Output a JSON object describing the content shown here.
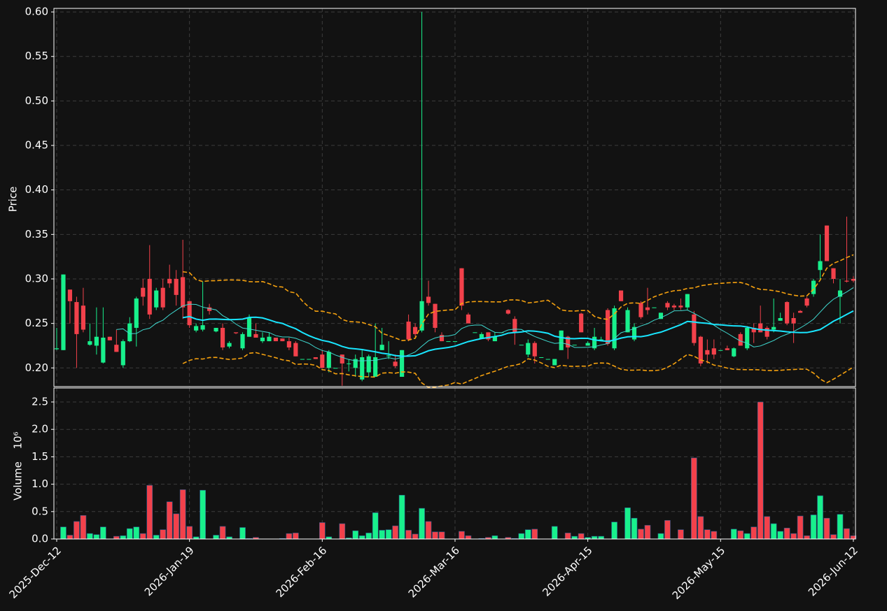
{
  "chart_data": {
    "type": "candlestick",
    "ylabel": "Price",
    "volume_label": "Volume",
    "volume_unit": "10⁶",
    "up_color": "#18f08c",
    "down_color": "#f2414b",
    "grid": true,
    "xlim": [
      -0.42,
      120.32
    ],
    "xticks": [
      {
        "value": 0,
        "label": "2025-Dec-12"
      },
      {
        "value": 20,
        "label": "2026-Jan-19"
      },
      {
        "value": 40,
        "label": "2026-Feb-16"
      },
      {
        "value": 60,
        "label": "2026-Mar-16"
      },
      {
        "value": 80,
        "label": "2026-Apr-15"
      },
      {
        "value": 100,
        "label": "2026-May-15"
      },
      {
        "value": 120,
        "label": "2026-Jun-12"
      }
    ],
    "ylim": [
      0.179,
      0.604
    ],
    "yticks": [
      {
        "value": 0.2,
        "label": "0.20"
      },
      0.25,
      {
        "value": 0.3,
        "label": "0.30"
      },
      0.35,
      {
        "value": 0.4,
        "label": "0.40"
      },
      0.45,
      {
        "value": 0.5,
        "label": "0.50"
      },
      0.55,
      {
        "value": 0.6,
        "label": "0.60"
      }
    ],
    "volume_ylim": [
      0,
      2.755
    ],
    "volume_yticks": [
      {
        "value": 0,
        "label": "0.0"
      },
      0.5,
      {
        "value": 1,
        "label": "1.0"
      },
      1.5,
      {
        "value": 2,
        "label": "2.0"
      },
      2.5
    ],
    "moving_averages": [
      {
        "period": 10,
        "color": "#3fd9d0",
        "width": 1
      },
      {
        "period": 20,
        "color": "#19e6ff",
        "width": 2
      }
    ],
    "bollinger": {
      "period": 20,
      "std": 2,
      "color": "#f5a10f"
    },
    "open": [
      0.221,
      0.22,
      0.288,
      0.274,
      0.27,
      0.226,
      0.225,
      0.206,
      0.235,
      0.226,
      0.203,
      0.23,
      0.245,
      0.29,
      0.3,
      0.268,
      0.29,
      0.3,
      0.3,
      0.302,
      0.275,
      0.242,
      0.243,
      0.268,
      0.241,
      0.245,
      0.224,
      0.24,
      0.222,
      0.235,
      0.238,
      0.23,
      0.23,
      0.234,
      0.233,
      0.23,
      0.228,
      0.21,
      0.21,
      0.212,
      0.215,
      0.2,
      0.2,
      0.215,
      0.205,
      0.2,
      0.187,
      0.195,
      0.19,
      0.22,
      0.213,
      0.207,
      0.19,
      0.252,
      0.246,
      0.242,
      0.28,
      0.272,
      0.237,
      0.23,
      0.23,
      0.312,
      0.26,
      0.24,
      0.233,
      0.24,
      0.23,
      0.24,
      0.265,
      0.255,
      0.226,
      0.215,
      0.228,
      0.212,
      0.21,
      0.203,
      0.22,
      0.235,
      0.226,
      0.261,
      0.225,
      0.222,
      0.23,
      0.265,
      0.222,
      0.287,
      0.24,
      0.232,
      0.273,
      0.268,
      0.268,
      0.255,
      0.273,
      0.27,
      0.27,
      0.268,
      0.26,
      0.235,
      0.22,
      0.222,
      0.22,
      0.222,
      0.213,
      0.238,
      0.222,
      0.245,
      0.25,
      0.245,
      0.243,
      0.253,
      0.274,
      0.256,
      0.264,
      0.278,
      0.283,
      0.31,
      0.36,
      0.312,
      0.28,
      0.298,
      0.3
    ],
    "high": [
      0.245,
      0.305,
      0.288,
      0.28,
      0.29,
      0.25,
      0.268,
      0.268,
      0.235,
      0.243,
      0.232,
      0.257,
      0.28,
      0.3,
      0.338,
      0.29,
      0.3,
      0.316,
      0.31,
      0.344,
      0.275,
      0.25,
      0.297,
      0.272,
      0.245,
      0.25,
      0.23,
      0.24,
      0.24,
      0.26,
      0.25,
      0.24,
      0.24,
      0.234,
      0.233,
      0.234,
      0.23,
      0.21,
      0.21,
      0.212,
      0.22,
      0.22,
      0.2,
      0.215,
      0.21,
      0.215,
      0.22,
      0.215,
      0.25,
      0.245,
      0.23,
      0.215,
      0.22,
      0.26,
      0.25,
      0.6,
      0.298,
      0.272,
      0.24,
      0.23,
      0.23,
      0.312,
      0.262,
      0.24,
      0.24,
      0.24,
      0.24,
      0.24,
      0.266,
      0.258,
      0.226,
      0.232,
      0.23,
      0.212,
      0.21,
      0.21,
      0.242,
      0.236,
      0.226,
      0.262,
      0.23,
      0.245,
      0.235,
      0.267,
      0.27,
      0.287,
      0.268,
      0.25,
      0.275,
      0.29,
      0.268,
      0.262,
      0.275,
      0.272,
      0.278,
      0.283,
      0.264,
      0.236,
      0.232,
      0.232,
      0.22,
      0.225,
      0.223,
      0.24,
      0.247,
      0.25,
      0.27,
      0.247,
      0.278,
      0.262,
      0.275,
      0.262,
      0.265,
      0.28,
      0.3,
      0.35,
      0.36,
      0.312,
      0.3,
      0.37,
      0.303
    ],
    "low": [
      0.22,
      0.22,
      0.25,
      0.2,
      0.24,
      0.225,
      0.215,
      0.205,
      0.231,
      0.218,
      0.2,
      0.229,
      0.224,
      0.27,
      0.255,
      0.265,
      0.265,
      0.29,
      0.27,
      0.255,
      0.245,
      0.24,
      0.241,
      0.26,
      0.24,
      0.22,
      0.222,
      0.238,
      0.22,
      0.235,
      0.234,
      0.228,
      0.23,
      0.23,
      0.23,
      0.22,
      0.213,
      0.21,
      0.21,
      0.21,
      0.2,
      0.195,
      0.2,
      0.18,
      0.196,
      0.19,
      0.185,
      0.19,
      0.19,
      0.22,
      0.21,
      0.2,
      0.19,
      0.23,
      0.235,
      0.24,
      0.27,
      0.24,
      0.23,
      0.23,
      0.23,
      0.265,
      0.25,
      0.24,
      0.233,
      0.23,
      0.23,
      0.24,
      0.26,
      0.226,
      0.226,
      0.212,
      0.205,
      0.212,
      0.21,
      0.203,
      0.22,
      0.21,
      0.226,
      0.24,
      0.225,
      0.22,
      0.23,
      0.225,
      0.22,
      0.275,
      0.24,
      0.23,
      0.255,
      0.26,
      0.268,
      0.255,
      0.265,
      0.265,
      0.265,
      0.265,
      0.225,
      0.202,
      0.205,
      0.21,
      0.22,
      0.22,
      0.212,
      0.225,
      0.22,
      0.228,
      0.24,
      0.232,
      0.24,
      0.253,
      0.248,
      0.228,
      0.262,
      0.268,
      0.28,
      0.3,
      0.32,
      0.295,
      0.25,
      0.296,
      0.296
    ],
    "close": [
      0.222,
      0.305,
      0.275,
      0.238,
      0.243,
      0.23,
      0.235,
      0.234,
      0.231,
      0.218,
      0.23,
      0.25,
      0.278,
      0.28,
      0.26,
      0.287,
      0.268,
      0.295,
      0.282,
      0.268,
      0.248,
      0.247,
      0.248,
      0.264,
      0.245,
      0.223,
      0.228,
      0.239,
      0.238,
      0.257,
      0.234,
      0.234,
      0.235,
      0.23,
      0.23,
      0.223,
      0.213,
      0.21,
      0.21,
      0.21,
      0.2,
      0.218,
      0.2,
      0.205,
      0.205,
      0.21,
      0.212,
      0.213,
      0.212,
      0.226,
      0.214,
      0.202,
      0.22,
      0.232,
      0.238,
      0.275,
      0.273,
      0.245,
      0.23,
      0.23,
      0.23,
      0.27,
      0.25,
      0.24,
      0.238,
      0.232,
      0.235,
      0.24,
      0.261,
      0.24,
      0.226,
      0.228,
      0.213,
      0.212,
      0.21,
      0.21,
      0.242,
      0.223,
      0.226,
      0.24,
      0.228,
      0.235,
      0.232,
      0.227,
      0.267,
      0.275,
      0.265,
      0.246,
      0.257,
      0.265,
      0.268,
      0.262,
      0.268,
      0.268,
      0.268,
      0.283,
      0.228,
      0.205,
      0.215,
      0.215,
      0.22,
      0.22,
      0.222,
      0.225,
      0.245,
      0.24,
      0.24,
      0.235,
      0.246,
      0.256,
      0.25,
      0.25,
      0.262,
      0.27,
      0.298,
      0.32,
      0.32,
      0.3,
      0.287,
      0.297,
      0.298
    ],
    "volume": [
      0,
      0.22,
      0.07,
      0.32,
      0.43,
      0.1,
      0.08,
      0.22,
      0,
      0.05,
      0.06,
      0.19,
      0.22,
      0.1,
      0.98,
      0.07,
      0.17,
      0.68,
      0.46,
      0.9,
      0.23,
      0.04,
      0.89,
      0,
      0.07,
      0.23,
      0.04,
      0,
      0.21,
      0.01,
      0.03,
      0,
      0,
      0,
      0.01,
      0.1,
      0.11,
      0,
      0,
      0,
      0.3,
      0.04,
      0,
      0.28,
      0.02,
      0.15,
      0.06,
      0.11,
      0.48,
      0.16,
      0.17,
      0.24,
      0.8,
      0.16,
      0.09,
      0.56,
      0.32,
      0.13,
      0.13,
      0,
      0,
      0.14,
      0.06,
      0,
      0.01,
      0.03,
      0.06,
      0,
      0.03,
      0.01,
      0.1,
      0.17,
      0.18,
      0,
      0,
      0.23,
      0,
      0.11,
      0.05,
      0.1,
      0.03,
      0.05,
      0.05,
      0,
      0.31,
      0,
      0.57,
      0.38,
      0.18,
      0.25,
      0,
      0.1,
      0.34,
      0,
      0.17,
      0,
      1.48,
      0.41,
      0.17,
      0.14,
      0,
      0,
      0.18,
      0.15,
      0.1,
      0.22,
      2.5,
      0.41,
      0.28,
      0.14,
      0.2,
      0.1,
      0.42,
      0.06,
      0.44,
      0.79,
      0.38,
      0.08,
      0.45,
      0.19,
      0.06
    ]
  }
}
